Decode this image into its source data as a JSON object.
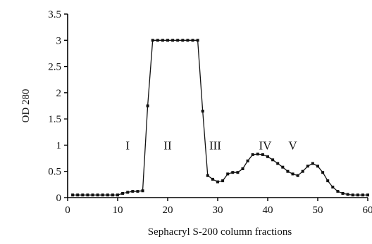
{
  "chart_data": {
    "type": "line",
    "xlabel": "Sephacryl S-200 column fractions",
    "ylabel": "OD 280",
    "xlim": [
      0,
      60
    ],
    "ylim": [
      0,
      3.5
    ],
    "x_ticks": [
      "0",
      "10",
      "20",
      "30",
      "40",
      "50",
      "60"
    ],
    "y_ticks": [
      "0",
      "0.5",
      "1",
      "1.5",
      "2",
      "2.5",
      "3",
      "3.5"
    ],
    "grid": false,
    "legend": "none",
    "annotations": [
      {
        "text": "I",
        "x": 12,
        "y": 1.0
      },
      {
        "text": "II",
        "x": 20,
        "y": 1.0
      },
      {
        "text": "III",
        "x": 29.5,
        "y": 1.0
      },
      {
        "text": "IV",
        "x": 39.5,
        "y": 1.0
      },
      {
        "text": "V",
        "x": 45,
        "y": 1.0
      }
    ],
    "series": [
      {
        "points": [
          [
            1,
            0.05
          ],
          [
            2,
            0.05
          ],
          [
            3,
            0.05
          ],
          [
            4,
            0.05
          ],
          [
            5,
            0.05
          ],
          [
            6,
            0.05
          ],
          [
            7,
            0.05
          ],
          [
            8,
            0.05
          ],
          [
            9,
            0.05
          ],
          [
            10,
            0.05
          ],
          [
            11,
            0.08
          ],
          [
            12,
            0.1
          ],
          [
            13,
            0.12
          ],
          [
            14,
            0.12
          ],
          [
            15,
            0.13
          ],
          [
            16,
            1.75
          ],
          [
            17,
            3.0
          ],
          [
            18,
            3.0
          ],
          [
            19,
            3.0
          ],
          [
            20,
            3.0
          ],
          [
            21,
            3.0
          ],
          [
            22,
            3.0
          ],
          [
            23,
            3.0
          ],
          [
            24,
            3.0
          ],
          [
            25,
            3.0
          ],
          [
            26,
            3.0
          ],
          [
            27,
            1.65
          ],
          [
            28,
            0.42
          ],
          [
            29,
            0.35
          ],
          [
            30,
            0.3
          ],
          [
            31,
            0.32
          ],
          [
            32,
            0.45
          ],
          [
            33,
            0.48
          ],
          [
            34,
            0.48
          ],
          [
            35,
            0.55
          ],
          [
            36,
            0.7
          ],
          [
            37,
            0.82
          ],
          [
            38,
            0.83
          ],
          [
            39,
            0.82
          ],
          [
            40,
            0.78
          ],
          [
            41,
            0.72
          ],
          [
            42,
            0.65
          ],
          [
            43,
            0.58
          ],
          [
            44,
            0.5
          ],
          [
            45,
            0.45
          ],
          [
            46,
            0.42
          ],
          [
            47,
            0.5
          ],
          [
            48,
            0.6
          ],
          [
            49,
            0.65
          ],
          [
            50,
            0.6
          ],
          [
            51,
            0.48
          ],
          [
            52,
            0.32
          ],
          [
            53,
            0.2
          ],
          [
            54,
            0.12
          ],
          [
            55,
            0.08
          ],
          [
            56,
            0.06
          ],
          [
            57,
            0.05
          ],
          [
            58,
            0.05
          ],
          [
            59,
            0.05
          ],
          [
            60,
            0.05
          ]
        ]
      }
    ]
  }
}
